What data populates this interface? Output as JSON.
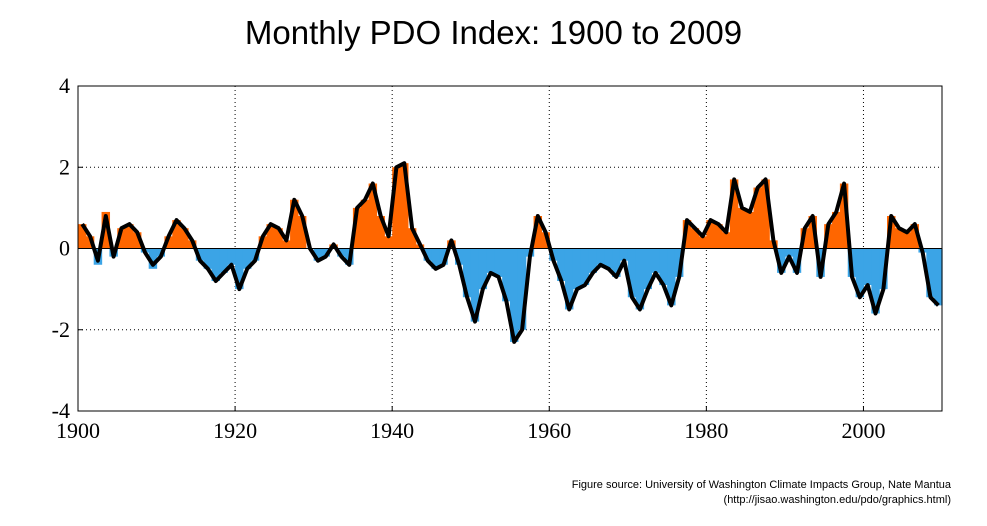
{
  "chart_data": {
    "type": "area",
    "title": "Monthly PDO Index: 1900 to 2009",
    "xlabel": "",
    "ylabel": "",
    "xlim": [
      1900,
      2010
    ],
    "ylim": [
      -4,
      4
    ],
    "x_ticks": [
      1900,
      1920,
      1940,
      1960,
      1980,
      2000
    ],
    "y_ticks": [
      4,
      2,
      0,
      -2,
      -4
    ],
    "grid": true,
    "colors": {
      "positive": "#ff6600",
      "negative": "#3ba4e6",
      "smoothed": "#000000"
    },
    "series": [
      {
        "x": [
          1900,
          1901,
          1902,
          1903,
          1904,
          1905,
          1906,
          1907,
          1908,
          1909,
          1910,
          1911,
          1912,
          1913,
          1914,
          1915,
          1916,
          1917,
          1918,
          1919,
          1920,
          1921,
          1922,
          1923,
          1924,
          1925,
          1926,
          1927,
          1928,
          1929,
          1930,
          1931,
          1932,
          1933,
          1934,
          1935,
          1936,
          1937,
          1938,
          1939,
          1940,
          1941,
          1942,
          1943,
          1944,
          1945,
          1946,
          1947,
          1948,
          1949,
          1950,
          1951,
          1952,
          1953,
          1954,
          1955,
          1956,
          1957,
          1958,
          1959,
          1960,
          1961,
          1962,
          1963,
          1964,
          1965,
          1966,
          1967,
          1968,
          1969,
          1970,
          1971,
          1972,
          1973,
          1974,
          1975,
          1976,
          1977,
          1978,
          1979,
          1980,
          1981,
          1982,
          1983,
          1984,
          1985,
          1986,
          1987,
          1988,
          1989,
          1990,
          1991,
          1992,
          1993,
          1994,
          1995,
          1996,
          1997,
          1998,
          1999,
          2000,
          2001,
          2002,
          2003,
          2004,
          2005,
          2006,
          2007,
          2008,
          2009
        ],
        "values": [
          0.6,
          0.3,
          -0.4,
          0.9,
          -0.2,
          0.5,
          0.6,
          0.4,
          -0.1,
          -0.5,
          -0.2,
          0.3,
          0.7,
          0.5,
          0.2,
          -0.3,
          -0.5,
          -0.8,
          -0.6,
          -0.4,
          -1.0,
          -0.5,
          -0.3,
          0.3,
          0.6,
          0.5,
          0.2,
          1.2,
          0.8,
          0.0,
          -0.3,
          -0.2,
          0.1,
          -0.2,
          -0.4,
          1.0,
          1.2,
          1.6,
          0.8,
          0.3,
          2.0,
          2.1,
          0.5,
          0.1,
          -0.3,
          -0.5,
          -0.4,
          0.2,
          -0.4,
          -1.2,
          -1.8,
          -1.0,
          -0.6,
          -0.7,
          -1.3,
          -2.3,
          -2.0,
          -0.2,
          0.8,
          0.4,
          -0.3,
          -0.8,
          -1.5,
          -1.0,
          -0.9,
          -0.6,
          -0.4,
          -0.5,
          -0.7,
          -0.3,
          -1.2,
          -1.5,
          -1.0,
          -0.6,
          -0.9,
          -1.4,
          -0.7,
          0.7,
          0.5,
          0.3,
          0.7,
          0.6,
          0.4,
          1.7,
          1.0,
          0.9,
          1.5,
          1.7,
          0.2,
          -0.6,
          -0.2,
          -0.6,
          0.5,
          0.8,
          -0.7,
          0.6,
          0.9,
          1.6,
          -0.7,
          -1.2,
          -0.9,
          -1.6,
          -1.0,
          0.8,
          0.5,
          0.4,
          0.6,
          -0.1,
          -1.2,
          -1.4
        ],
        "smoothed": [
          0.6,
          0.3,
          -0.3,
          0.8,
          -0.2,
          0.5,
          0.6,
          0.4,
          -0.1,
          -0.4,
          -0.2,
          0.3,
          0.7,
          0.5,
          0.2,
          -0.3,
          -0.5,
          -0.8,
          -0.6,
          -0.4,
          -1.0,
          -0.5,
          -0.3,
          0.3,
          0.6,
          0.5,
          0.2,
          1.2,
          0.8,
          0.0,
          -0.3,
          -0.2,
          0.1,
          -0.2,
          -0.4,
          1.0,
          1.2,
          1.6,
          0.8,
          0.3,
          2.0,
          2.1,
          0.5,
          0.1,
          -0.3,
          -0.5,
          -0.4,
          0.2,
          -0.4,
          -1.2,
          -1.8,
          -1.0,
          -0.6,
          -0.7,
          -1.3,
          -2.3,
          -2.0,
          -0.2,
          0.8,
          0.4,
          -0.3,
          -0.8,
          -1.5,
          -1.0,
          -0.9,
          -0.6,
          -0.4,
          -0.5,
          -0.7,
          -0.3,
          -1.2,
          -1.5,
          -1.0,
          -0.6,
          -0.9,
          -1.4,
          -0.7,
          0.7,
          0.5,
          0.3,
          0.7,
          0.6,
          0.4,
          1.7,
          1.0,
          0.9,
          1.5,
          1.7,
          0.2,
          -0.6,
          -0.2,
          -0.6,
          0.5,
          0.8,
          -0.7,
          0.6,
          0.9,
          1.6,
          -0.7,
          -1.2,
          -0.9,
          -1.6,
          -1.0,
          0.8,
          0.5,
          0.4,
          0.6,
          -0.1,
          -1.2,
          -1.4
        ]
      }
    ]
  },
  "source": {
    "line1": "Figure source: University of Washington Climate Impacts Group, Nate Mantua",
    "line2": "(http://jisao.washington.edu/pdo/graphics.html)"
  }
}
